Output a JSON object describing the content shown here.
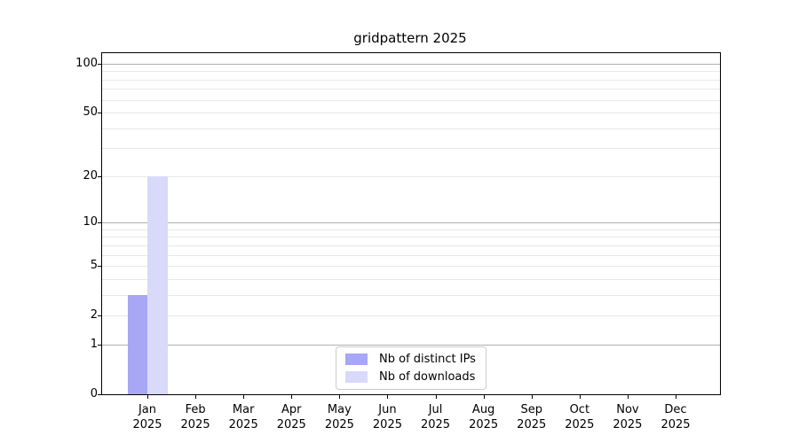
{
  "title": "gridpattern 2025",
  "chart_data": {
    "type": "bar",
    "title": "gridpattern 2025",
    "categories": [
      "Jan",
      "Feb",
      "Mar",
      "Apr",
      "May",
      "Jun",
      "Jul",
      "Aug",
      "Sep",
      "Oct",
      "Nov",
      "Dec"
    ],
    "tick_year": "2025",
    "series": [
      {
        "name": "Nb of distinct IPs",
        "color": "#a7a7f6",
        "values": [
          3,
          0,
          0,
          0,
          0,
          0,
          0,
          0,
          0,
          0,
          0,
          0
        ]
      },
      {
        "name": "Nb of downloads",
        "color": "#d9d9fa",
        "values": [
          20,
          0,
          0,
          0,
          0,
          0,
          0,
          0,
          0,
          0,
          0,
          0
        ]
      }
    ],
    "yscale": "log10(x+1)",
    "ylim": [
      0,
      116
    ],
    "yticks": [
      0,
      1,
      2,
      5,
      10,
      20,
      50,
      100
    ],
    "grid_major": [
      1,
      10,
      100
    ],
    "grid_minor": [
      2,
      3,
      4,
      5,
      6,
      7,
      8,
      9,
      20,
      30,
      40,
      50,
      60,
      70,
      80,
      90
    ],
    "xlabel": "",
    "ylabel": "",
    "legend_position": "lower center",
    "grid": "on"
  },
  "colors": {
    "background": "#ffffff",
    "spine": "#000000",
    "text": "#000000",
    "grid_major": "#b0b0b0",
    "grid_minor": "#e8e8e8",
    "legend_border": "#cccccc",
    "bar_distinct_ips": "#a7a7f6",
    "bar_downloads": "#d9d9fa"
  }
}
